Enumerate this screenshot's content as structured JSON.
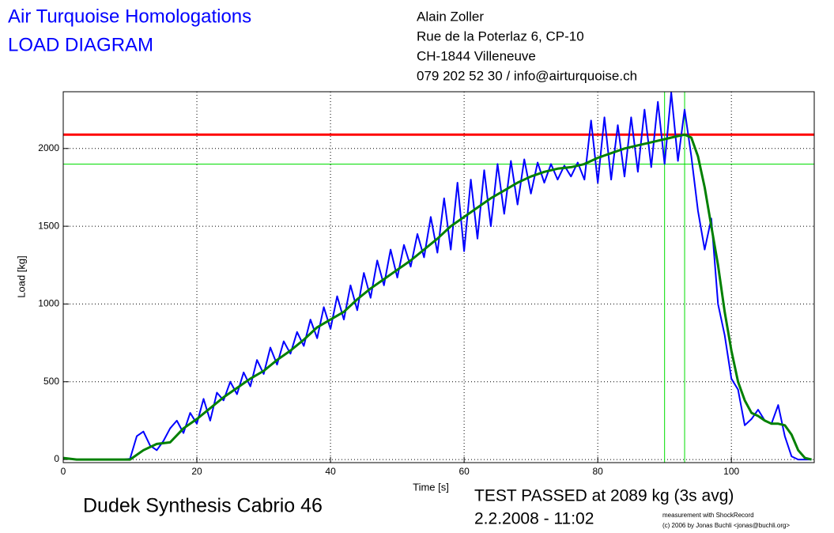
{
  "chart_data": {
    "type": "line",
    "title": "Air Turquoise Homologations",
    "subtitle": "LOAD DIAGRAM",
    "address": [
      "Alain Zoller",
      "Rue de la Poterlaz 6, CP-10",
      "CH-1844 Villeneuve",
      "079 202 52 30 / info@airturquoise.ch"
    ],
    "x_label": "Time [s]",
    "y_label": "Load [kg]",
    "glider": "Dudek Synthesis Cabrio 46",
    "result": "TEST PASSED at 2089 kg (3s avg)",
    "date": "2.2.2008 - 11:02",
    "credits": [
      "measurement with ShockRecord",
      "(c) 2006 by Jonas Buchli <jonas@buchli.org>"
    ],
    "xlim": [
      0,
      112.4
    ],
    "ylim": [
      -20,
      2365
    ],
    "xticks": [
      0,
      20,
      40,
      60,
      80,
      100
    ],
    "yticks": [
      0,
      500,
      1000,
      1500,
      2000
    ],
    "grid": true,
    "reference_lines": [
      {
        "axis": "y",
        "value": 2089,
        "color": "#ff0000"
      },
      {
        "axis": "y",
        "value": 1900,
        "color": "#00dd00"
      },
      {
        "axis": "x",
        "value": 90,
        "color": "#00dd00"
      },
      {
        "axis": "x",
        "value": 93,
        "color": "#00dd00"
      }
    ],
    "series": [
      {
        "color": "#0000ff",
        "width": 2,
        "x": [
          0,
          1,
          2,
          3,
          4,
          5,
          6,
          7,
          8,
          9,
          10,
          11,
          12,
          13,
          14,
          15,
          16,
          17,
          18,
          19,
          20,
          21,
          22,
          23,
          24,
          25,
          26,
          27,
          28,
          29,
          30,
          31,
          32,
          33,
          34,
          35,
          36,
          37,
          38,
          39,
          40,
          41,
          42,
          43,
          44,
          45,
          46,
          47,
          48,
          49,
          50,
          51,
          52,
          53,
          54,
          55,
          56,
          57,
          58,
          59,
          60,
          61,
          62,
          63,
          64,
          65,
          66,
          67,
          68,
          69,
          70,
          71,
          72,
          73,
          74,
          75,
          76,
          77,
          78,
          79,
          80,
          81,
          82,
          83,
          84,
          85,
          86,
          87,
          88,
          89,
          90,
          91,
          92,
          93,
          94,
          95,
          96,
          97,
          98,
          99,
          100,
          101,
          102,
          103,
          104,
          105,
          106,
          107,
          108,
          109,
          110,
          111,
          112
        ],
        "values": [
          10,
          5,
          0,
          0,
          0,
          0,
          0,
          0,
          0,
          0,
          5,
          150,
          180,
          90,
          60,
          120,
          200,
          250,
          170,
          300,
          230,
          390,
          250,
          430,
          380,
          500,
          420,
          560,
          470,
          640,
          550,
          720,
          610,
          760,
          680,
          820,
          730,
          900,
          780,
          980,
          840,
          1050,
          900,
          1120,
          960,
          1200,
          1040,
          1280,
          1120,
          1350,
          1170,
          1380,
          1240,
          1450,
          1300,
          1560,
          1330,
          1680,
          1350,
          1780,
          1340,
          1800,
          1420,
          1860,
          1500,
          1900,
          1580,
          1920,
          1640,
          1930,
          1710,
          1910,
          1780,
          1900,
          1800,
          1890,
          1820,
          1910,
          1800,
          2180,
          1780,
          2200,
          1800,
          2150,
          1820,
          2200,
          1850,
          2250,
          1880,
          2300,
          1900,
          2360,
          1920,
          2250,
          1950,
          1600,
          1350,
          1550,
          1000,
          800,
          520,
          450,
          220,
          260,
          320,
          250,
          230,
          350,
          150,
          20,
          0,
          0,
          0
        ]
      },
      {
        "color": "#008000",
        "width": 3,
        "x": [
          0,
          2,
          10,
          12,
          14,
          16,
          18,
          20,
          22,
          24,
          26,
          28,
          30,
          32,
          34,
          36,
          38,
          40,
          42,
          44,
          46,
          48,
          50,
          52,
          54,
          56,
          58,
          60,
          62,
          64,
          66,
          68,
          70,
          72,
          74,
          76,
          78,
          80,
          82,
          84,
          86,
          88,
          90,
          92,
          93,
          94,
          95,
          96,
          97,
          98,
          99,
          100,
          101,
          102,
          103,
          104,
          105,
          106,
          107,
          108,
          109,
          110,
          111,
          112
        ],
        "values": [
          10,
          0,
          0,
          60,
          100,
          110,
          200,
          260,
          330,
          400,
          460,
          520,
          570,
          640,
          700,
          770,
          850,
          900,
          950,
          1030,
          1100,
          1160,
          1220,
          1280,
          1350,
          1420,
          1500,
          1560,
          1620,
          1680,
          1730,
          1780,
          1820,
          1850,
          1870,
          1880,
          1900,
          1940,
          1970,
          2000,
          2020,
          2040,
          2060,
          2080,
          2089,
          2070,
          1950,
          1750,
          1500,
          1250,
          950,
          700,
          500,
          380,
          300,
          280,
          250,
          230,
          230,
          220,
          160,
          60,
          10,
          0
        ]
      }
    ]
  }
}
